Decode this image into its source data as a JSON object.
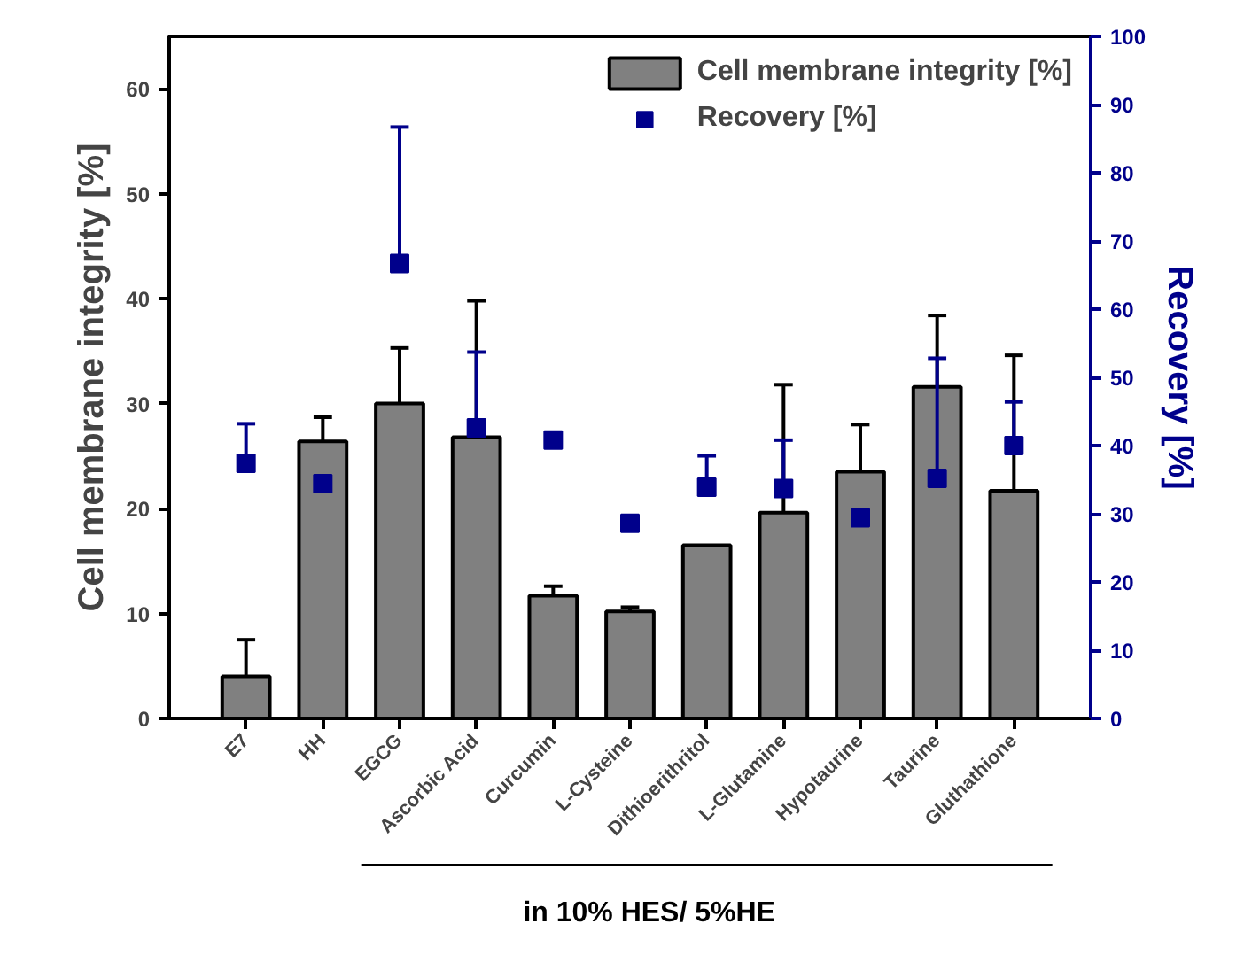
{
  "chart_data": {
    "type": "bar",
    "categories": [
      "E7",
      "HH",
      "EGCG",
      "Ascorbic Acid",
      "Curcumin",
      "L-Cysteine",
      "Dithioerithritol",
      "L-Glutamine",
      "Hypotaurine",
      "Taurine",
      "Gluthathione"
    ],
    "series": [
      {
        "name": "Cell membrane integrity [%]",
        "color": "#808080",
        "values": [
          4.0,
          26.4,
          30.0,
          26.8,
          11.7,
          10.2,
          16.5,
          19.6,
          23.5,
          31.6,
          21.7
        ],
        "errors": [
          [
            4.0,
            7.5
          ],
          [
            26.4,
            28.7
          ],
          [
            30.0,
            35.3
          ],
          [
            26.8,
            39.8
          ],
          [
            11.7,
            12.6
          ],
          [
            10.2,
            10.6
          ],
          null,
          [
            19.6,
            31.8
          ],
          [
            23.5,
            28.0
          ],
          [
            31.6,
            38.4
          ],
          [
            21.7,
            34.6
          ]
        ]
      },
      {
        "name": "Recovery [%]",
        "type": "scatter",
        "axis": "y2",
        "color": "#00008b",
        "marker": "square",
        "values": [
          37.4,
          34.4,
          66.7,
          42.6,
          40.8,
          28.6,
          33.9,
          33.7,
          29.4,
          35.2,
          40.0
        ],
        "errors": [
          [
            37.4,
            43.2
          ],
          null,
          [
            66.7,
            86.7
          ],
          [
            42.6,
            53.7
          ],
          null,
          null,
          [
            33.9,
            38.5
          ],
          [
            33.7,
            40.8
          ],
          null,
          [
            35.2,
            52.8
          ],
          [
            40.0,
            46.4
          ]
        ]
      }
    ],
    "ylabel": "Cell membrane integrity [%]",
    "y2label": "Recovery [%]",
    "ylim": [
      0,
      65
    ],
    "yticks": [
      0,
      10,
      20,
      30,
      40,
      50,
      60
    ],
    "y2lim": [
      0,
      100
    ],
    "y2ticks": [
      0,
      10,
      20,
      30,
      40,
      50,
      60,
      70,
      80,
      90,
      100
    ],
    "legend": "top right",
    "annotations": [
      "in 10% HES/ 5%HE"
    ]
  }
}
